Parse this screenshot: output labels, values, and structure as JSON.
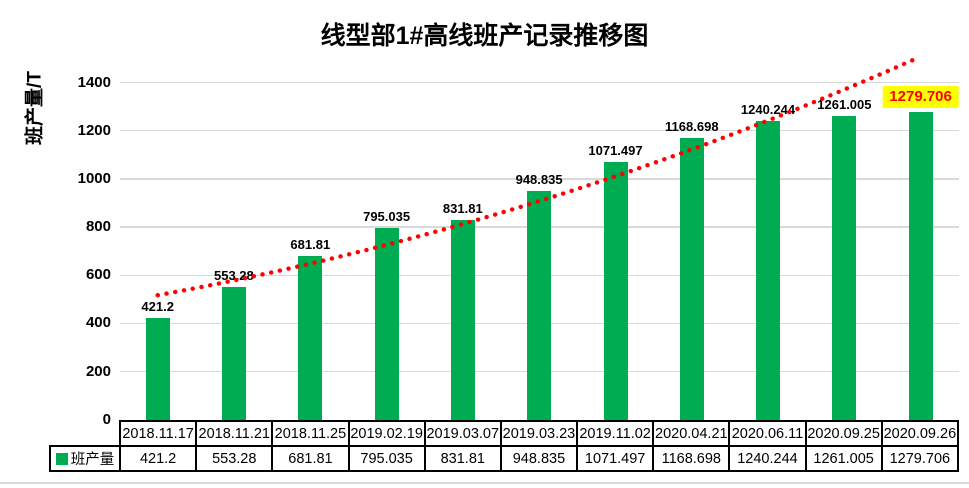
{
  "title": "线型部1#高线班产记录推移图",
  "colors": {
    "bar": "#00AC52",
    "grid": "#D9D9D9",
    "axis": "#000000",
    "trend": "#FF0000",
    "highlight_bg": "#FFFF00",
    "highlight_text": "#FF0000",
    "frame_line": "#D9D9D9",
    "text": "#000000"
  },
  "chart_data": {
    "type": "bar",
    "title": "线型部1#高线班产记录推移图",
    "xlabel": "",
    "ylabel": "班产量/T",
    "ylim": [
      0,
      1500
    ],
    "yticks": [
      0,
      200,
      400,
      600,
      800,
      1000,
      1200,
      1400
    ],
    "grid": true,
    "legend_position": "data-table-left",
    "categories": [
      "2018.11.17",
      "2018.11.21",
      "2018.11.25",
      "2019.02.19",
      "2019.03.07",
      "2019.03.23",
      "2019.11.02",
      "2020.04.21",
      "2020.06.11",
      "2020.09.25",
      "2020.09.26"
    ],
    "series": [
      {
        "name": "班产量",
        "color": "#00AC52",
        "values": [
          421.2,
          553.28,
          681.81,
          795.035,
          831.81,
          948.835,
          1071.497,
          1168.698,
          1240.244,
          1261.005,
          1279.706
        ]
      }
    ],
    "data_labels": true,
    "highlight": {
      "index": 10,
      "bg": "#FFFF00",
      "text_color": "#FF0000"
    },
    "trendline": {
      "style": "dotted",
      "color": "#FF0000",
      "anchors_idx_value": [
        [
          0,
          517
        ],
        [
          4.97,
          905
        ],
        [
          9.94,
          1500
        ]
      ]
    },
    "data_table": true
  }
}
